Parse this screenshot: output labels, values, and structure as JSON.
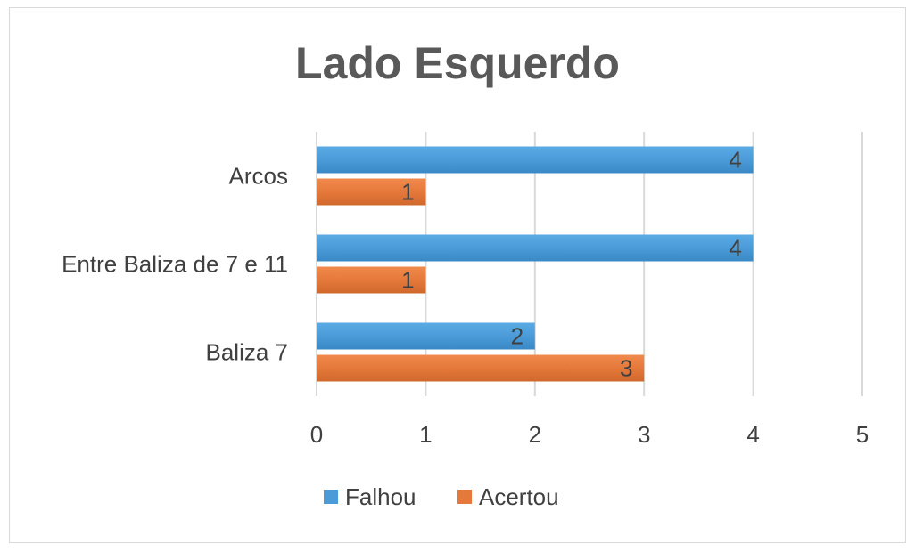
{
  "chart_data": {
    "type": "bar",
    "orientation": "horizontal",
    "title": "Lado Esquerdo",
    "xlabel": "",
    "ylabel": "",
    "categories": [
      "Arcos",
      "Entre Baliza de 7 e 11",
      "Baliza 7"
    ],
    "series": [
      {
        "name": "Falhou",
        "values": [
          4,
          4,
          2
        ],
        "color": "#4a9bd8"
      },
      {
        "name": "Acertou",
        "values": [
          1,
          1,
          3
        ],
        "color": "#e5793b"
      }
    ],
    "xlim": [
      0,
      5
    ],
    "xticks": [
      "0",
      "1",
      "2",
      "3",
      "4",
      "5"
    ],
    "grid": "vertical",
    "legend": "bottom",
    "data_labels": true
  }
}
